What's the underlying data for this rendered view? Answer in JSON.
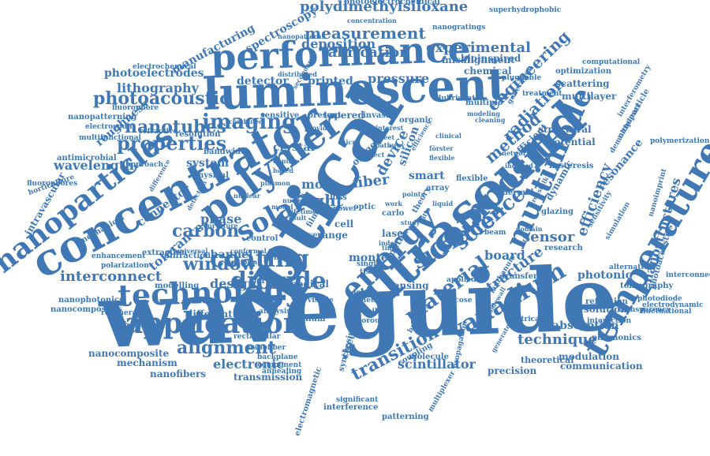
{
  "color": "#3f78b5",
  "words": [
    {
      "text": "waveguide"
    },
    {
      "text": "optical"
    },
    {
      "text": "ultrasound"
    },
    {
      "text": "concentrator"
    },
    {
      "text": "luminescent"
    },
    {
      "text": "performance"
    },
    {
      "text": "nanoparticles"
    },
    {
      "text": "polymer"
    },
    {
      "text": "composite"
    },
    {
      "text": "energy"
    },
    {
      "text": "temperature"
    },
    {
      "text": "technology"
    },
    {
      "text": "application"
    },
    {
      "text": "solar"
    },
    {
      "text": "multimode"
    },
    {
      "text": "vanadium"
    },
    {
      "text": "surface"
    },
    {
      "text": "material"
    },
    {
      "text": "science"
    },
    {
      "text": "coating"
    },
    {
      "text": "dioxide"
    },
    {
      "text": "imaging"
    },
    {
      "text": "properties"
    },
    {
      "text": "nanotubes"
    },
    {
      "text": "photoacoustic"
    },
    {
      "text": "measurement"
    },
    {
      "text": "polydimethylsiloxane"
    },
    {
      "text": "engineering"
    },
    {
      "text": "radiation"
    },
    {
      "text": "nanostructures"
    },
    {
      "text": "efficiency"
    },
    {
      "text": "transition"
    },
    {
      "text": "alignment"
    },
    {
      "text": "window"
    },
    {
      "text": "carbon"
    },
    {
      "text": "fabrication"
    },
    {
      "text": "experimental"
    },
    {
      "text": "deposition"
    },
    {
      "text": "pressure"
    },
    {
      "text": "method"
    },
    {
      "text": "structure"
    },
    {
      "text": "sensor"
    },
    {
      "text": "interconnect"
    },
    {
      "text": "technique"
    },
    {
      "text": "scintillator"
    },
    {
      "text": "electronic"
    },
    {
      "text": "absorption"
    },
    {
      "text": "photonic"
    },
    {
      "text": "fiber"
    },
    {
      "text": "light"
    },
    {
      "text": "device"
    },
    {
      "text": "silicon"
    },
    {
      "text": "smart"
    },
    {
      "text": "mode"
    },
    {
      "text": "crystal"
    },
    {
      "text": "design"
    },
    {
      "text": "channel"
    },
    {
      "text": "tolerance"
    },
    {
      "text": "phase"
    },
    {
      "text": "board"
    },
    {
      "text": "resonance"
    },
    {
      "text": "detector"
    },
    {
      "text": "printed"
    },
    {
      "text": "connector"
    },
    {
      "text": "wavelength"
    },
    {
      "text": "system"
    },
    {
      "text": "lithography"
    },
    {
      "text": "photoelectrodes"
    },
    {
      "text": "manufacturing"
    },
    {
      "text": "spectroscopy"
    },
    {
      "text": "misalignment"
    },
    {
      "text": "chemical"
    },
    {
      "text": "bioinspired"
    },
    {
      "text": "structural"
    },
    {
      "text": "potential"
    },
    {
      "text": "dynamic"
    },
    {
      "text": "solution"
    },
    {
      "text": "communication"
    },
    {
      "text": "modulation"
    },
    {
      "text": "precision"
    },
    {
      "text": "nanocomposite"
    },
    {
      "text": "mechanism"
    },
    {
      "text": "nanofibers"
    },
    {
      "text": "transmission"
    },
    {
      "text": "different"
    },
    {
      "text": "coherence"
    },
    {
      "text": "nanophotonics"
    },
    {
      "text": "nanocomposites"
    },
    {
      "text": "diffraction"
    },
    {
      "text": "extraction"
    },
    {
      "text": "roughness"
    },
    {
      "text": "antimicrobial"
    },
    {
      "text": "intravascular"
    },
    {
      "text": "multilayer"
    },
    {
      "text": "scattering"
    },
    {
      "text": "optimization"
    },
    {
      "text": "tomography"
    },
    {
      "text": "plasmonics"
    },
    {
      "text": "photodiode"
    },
    {
      "text": "electrodynamic"
    },
    {
      "text": "interconnection"
    },
    {
      "text": "fluctuational"
    },
    {
      "text": "photoacoustics"
    },
    {
      "text": "nanoimprint"
    },
    {
      "text": "polymerization"
    },
    {
      "text": "computational"
    },
    {
      "text": "superhydrophobic"
    },
    {
      "text": "nanogratings"
    },
    {
      "text": "photoelectrochemical"
    },
    {
      "text": "electrochemical"
    },
    {
      "text": "nanopatterning"
    },
    {
      "text": "interference"
    },
    {
      "text": "propagation"
    },
    {
      "text": "theoretical"
    },
    {
      "text": "sensing"
    },
    {
      "text": "monte"
    },
    {
      "text": "laser"
    },
    {
      "text": "range"
    },
    {
      "text": "cell"
    },
    {
      "text": "medical"
    },
    {
      "text": "particle"
    },
    {
      "text": "titanium"
    },
    {
      "text": "circuit"
    },
    {
      "text": "synthesis"
    },
    {
      "text": "molecule"
    },
    {
      "text": "electromagnetic"
    },
    {
      "text": "patterning"
    },
    {
      "text": "coupling"
    },
    {
      "text": "oxygen"
    },
    {
      "text": "tapered"
    },
    {
      "text": "sensitive"
    },
    {
      "text": "bandwidth"
    },
    {
      "text": "physical"
    },
    {
      "text": "resolution"
    },
    {
      "text": "refractive"
    },
    {
      "text": "fluorophore"
    },
    {
      "text": "multifunctional"
    },
    {
      "text": "electrospun"
    },
    {
      "text": "approach"
    },
    {
      "text": "horticulture"
    },
    {
      "text": "fluorophores"
    },
    {
      "text": "mechanical"
    },
    {
      "text": "enhancement"
    },
    {
      "text": "polarization"
    },
    {
      "text": "regenerative"
    },
    {
      "text": "modelling"
    },
    {
      "text": "control"
    },
    {
      "text": "concave"
    },
    {
      "text": "layer"
    },
    {
      "text": "present"
    },
    {
      "text": "organic"
    },
    {
      "text": "invasive"
    },
    {
      "text": "flexible"
    },
    {
      "text": "array"
    },
    {
      "text": "efficient"
    },
    {
      "text": "thermal"
    },
    {
      "text": "research"
    },
    {
      "text": "transfer"
    },
    {
      "text": "applied"
    },
    {
      "text": "lanthanum"
    },
    {
      "text": "reflection"
    },
    {
      "text": "interaction"
    },
    {
      "text": "transparency"
    },
    {
      "text": "alternative"
    },
    {
      "text": "glazing"
    },
    {
      "text": "hysteresis"
    },
    {
      "text": "simulation"
    },
    {
      "text": "sensitivity"
    },
    {
      "text": "nanoparticle"
    },
    {
      "text": "demultiplexer"
    },
    {
      "text": "interferometry"
    },
    {
      "text": "treatment"
    },
    {
      "text": "pluggable"
    },
    {
      "text": "multiple"
    },
    {
      "text": "lubricant"
    },
    {
      "text": "generation"
    },
    {
      "text": "distributed"
    },
    {
      "text": "concentration"
    },
    {
      "text": "nanopatterns"
    },
    {
      "text": "backplane"
    },
    {
      "text": "component"
    },
    {
      "text": "annealing"
    },
    {
      "text": "nanofiber"
    },
    {
      "text": "rectangular"
    },
    {
      "text": "analysis"
    },
    {
      "text": "losses"
    },
    {
      "text": "kinetic"
    },
    {
      "text": "porous"
    },
    {
      "text": "milling"
    },
    {
      "text": "tissue"
    },
    {
      "text": "single"
    },
    {
      "text": "visible"
    },
    {
      "text": "building"
    },
    {
      "text": "glucose"
    },
    {
      "text": "electrical"
    },
    {
      "text": "multiplexer"
    },
    {
      "text": "significant"
    },
    {
      "text": "nucleic"
    },
    {
      "text": "detection"
    },
    {
      "text": "curvature"
    },
    {
      "text": "universal"
    },
    {
      "text": "uniform"
    },
    {
      "text": "conformal"
    },
    {
      "text": "lifetime"
    },
    {
      "text": "doping"
    },
    {
      "text": "based"
    },
    {
      "text": "result"
    },
    {
      "text": "model"
    },
    {
      "text": "power"
    },
    {
      "text": "carlo"
    },
    {
      "text": "loss"
    },
    {
      "text": "work"
    },
    {
      "text": "index"
    },
    {
      "text": "time"
    },
    {
      "text": "film"
    },
    {
      "text": "optic"
    },
    {
      "text": "study"
    },
    {
      "text": "metal"
    },
    {
      "text": "theory"
    },
    {
      "text": "ratio"
    },
    {
      "text": "förster"
    },
    {
      "text": "clinical"
    },
    {
      "text": "modeling"
    },
    {
      "text": "cleaning"
    },
    {
      "text": "network"
    },
    {
      "text": "induced"
    },
    {
      "text": "beam"
    },
    {
      "text": "domain"
    },
    {
      "text": "sidewall"
    },
    {
      "text": "crosstalk"
    },
    {
      "text": "combined"
    },
    {
      "text": "secondary"
    },
    {
      "text": "plasmon"
    },
    {
      "text": "nuclear"
    },
    {
      "text": "difference"
    },
    {
      "text": "provide"
    },
    {
      "text": "interest"
    },
    {
      "text": "pathway"
    },
    {
      "text": "efficiency"
    },
    {
      "text": "flexible"
    },
    {
      "text": "generated"
    },
    {
      "text": "effect"
    },
    {
      "text": "sheet"
    },
    {
      "text": "points"
    },
    {
      "text": "liquid"
    },
    {
      "text": "micro"
    }
  ]
}
